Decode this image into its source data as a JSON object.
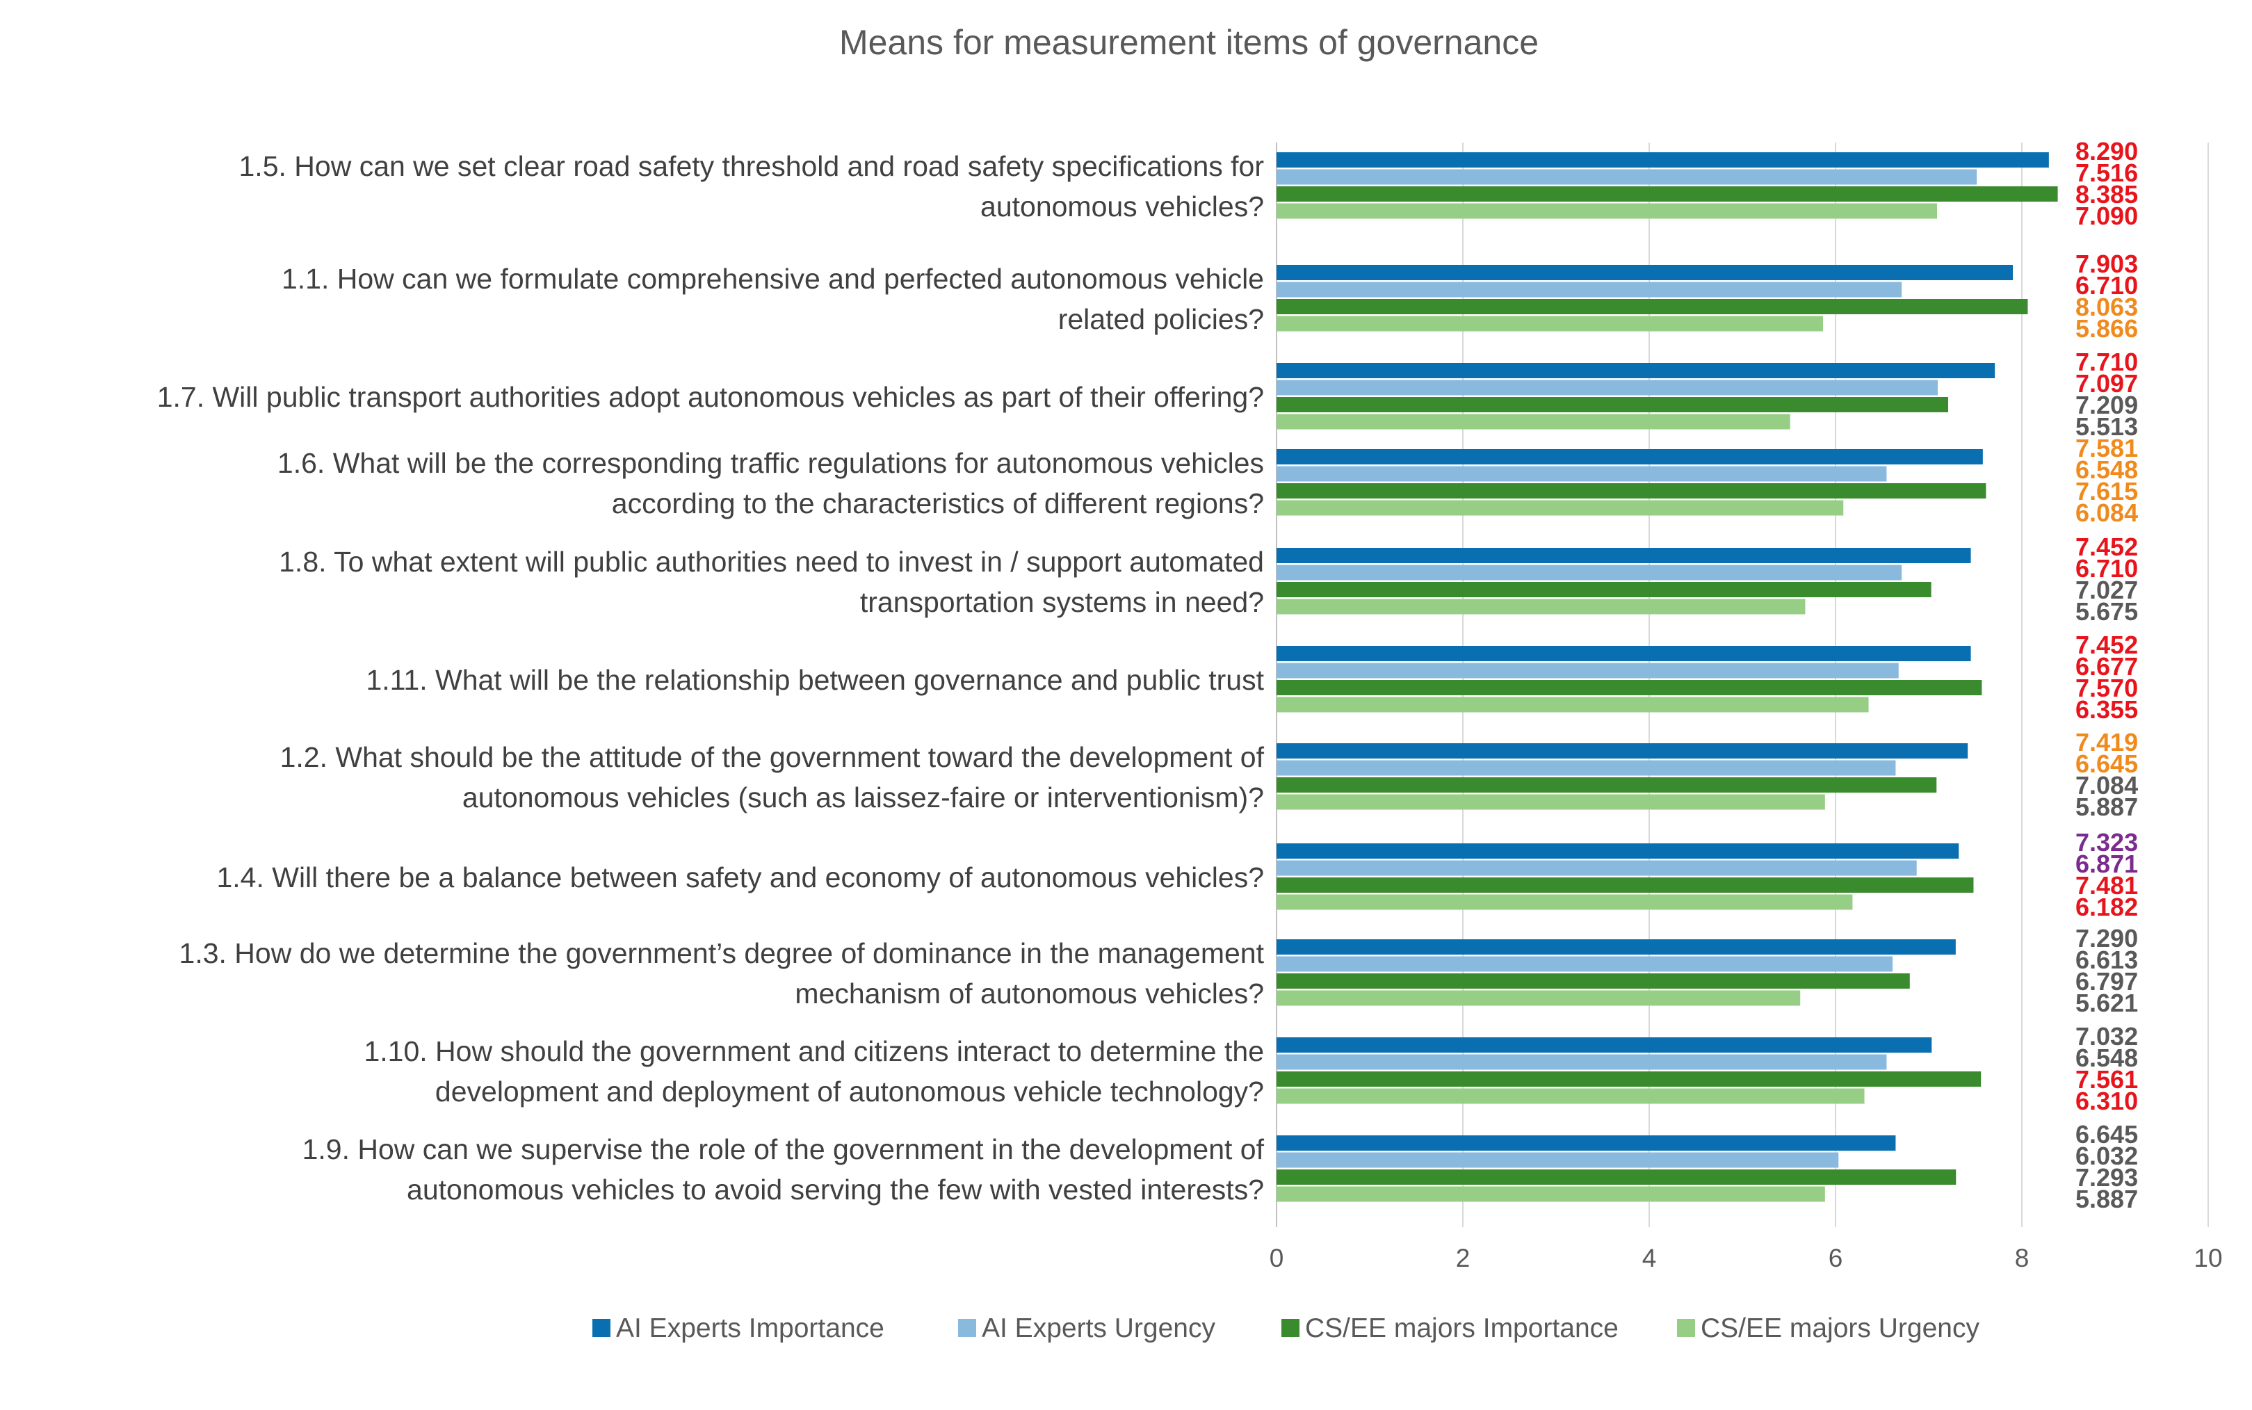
{
  "chart_data": {
    "type": "bar",
    "orientation": "horizontal",
    "title": "Means for measurement items of governance",
    "xlim": [
      0,
      10
    ],
    "x_ticks": [
      "0",
      "2",
      "4",
      "6",
      "8",
      "10"
    ],
    "grid": true,
    "legend_position": "bottom",
    "categories": [
      [
        "1.5. How can we set clear road safety threshold and road safety specifications for",
        "autonomous vehicles?"
      ],
      [
        "1.1. How can we formulate comprehensive and perfected autonomous vehicle",
        "related policies?"
      ],
      [
        "1.7. Will public transport authorities adopt autonomous vehicles as part of their offering?"
      ],
      [
        "1.6. What will be the corresponding traffic regulations for autonomous vehicles",
        "according to the characteristics of different regions?"
      ],
      [
        "1.8. To what extent will public authorities need to invest in / support automated",
        "transportation systems in need?"
      ],
      [
        "1.11. What will be the relationship between governance and public trust"
      ],
      [
        "1.2. What should be the attitude of the government toward the development of",
        "autonomous vehicles (such as laissez-faire or interventionism)?"
      ],
      [
        "1.4. Will there be a balance between safety and economy of autonomous vehicles?"
      ],
      [
        "1.3. How do we determine the government’s degree of dominance in the management",
        "mechanism of autonomous vehicles?"
      ],
      [
        "1.10. How should the government and citizens interact to determine the",
        "development and deployment of autonomous vehicle technology?"
      ],
      [
        "1.9. How can we supervise the role of the government in the development of",
        "autonomous vehicles to avoid serving the few with vested interests?"
      ]
    ],
    "series": [
      {
        "name": "AI Experts  Importance",
        "color": "#0a6fb0",
        "values": [
          8.29,
          7.903,
          7.71,
          7.581,
          7.452,
          7.452,
          7.419,
          7.323,
          7.29,
          7.032,
          6.645
        ],
        "labels": [
          "8.290",
          "7.903",
          "7.710",
          "7.581",
          "7.452",
          "7.452",
          "7.419",
          "7.323",
          "7.290",
          "7.032",
          "6.645"
        ],
        "label_colors": [
          "#e8141c",
          "#e8141c",
          "#e8141c",
          "#f08a1d",
          "#e8141c",
          "#e8141c",
          "#f08a1d",
          "#7b2b8e",
          "#595959",
          "#595959",
          "#595959"
        ]
      },
      {
        "name": "AI Experts  Urgency",
        "color": "#8ab9de",
        "values": [
          7.516,
          6.71,
          7.097,
          6.548,
          6.71,
          6.677,
          6.645,
          6.871,
          6.613,
          6.548,
          6.032
        ],
        "labels": [
          "7.516",
          "6.710",
          "7.097",
          "6.548",
          "6.710",
          "6.677",
          "6.645",
          "6.871",
          "6.613",
          "6.548",
          "6.032"
        ],
        "label_colors": [
          "#e8141c",
          "#e8141c",
          "#e8141c",
          "#f08a1d",
          "#e8141c",
          "#e8141c",
          "#f08a1d",
          "#7b2b8e",
          "#595959",
          "#595959",
          "#595959"
        ]
      },
      {
        "name": "CS/EE majors Importance",
        "color": "#3a8a2e",
        "values": [
          8.385,
          8.063,
          7.209,
          7.615,
          7.027,
          7.57,
          7.084,
          7.481,
          6.797,
          7.561,
          7.293
        ],
        "labels": [
          "8.385",
          "8.063",
          "7.209",
          "7.615",
          "7.027",
          "7.570",
          "7.084",
          "7.481",
          "6.797",
          "7.561",
          "7.293"
        ],
        "label_colors": [
          "#e8141c",
          "#f08a1d",
          "#595959",
          "#f08a1d",
          "#595959",
          "#e8141c",
          "#595959",
          "#e8141c",
          "#595959",
          "#e8141c",
          "#595959"
        ]
      },
      {
        "name": "CS/EE majors Urgency",
        "color": "#97ce86",
        "values": [
          7.09,
          5.866,
          5.513,
          6.084,
          5.675,
          6.355,
          5.887,
          6.182,
          5.621,
          6.31,
          5.887
        ],
        "labels": [
          "7.090",
          "5.866",
          "5.513",
          "6.084",
          "5.675",
          "6.355",
          "5.887",
          "6.182",
          "5.621",
          "6.310",
          "5.887"
        ],
        "label_colors": [
          "#e8141c",
          "#f08a1d",
          "#595959",
          "#f08a1d",
          "#595959",
          "#e8141c",
          "#595959",
          "#e8141c",
          "#595959",
          "#e8141c",
          "#595959"
        ]
      }
    ]
  }
}
